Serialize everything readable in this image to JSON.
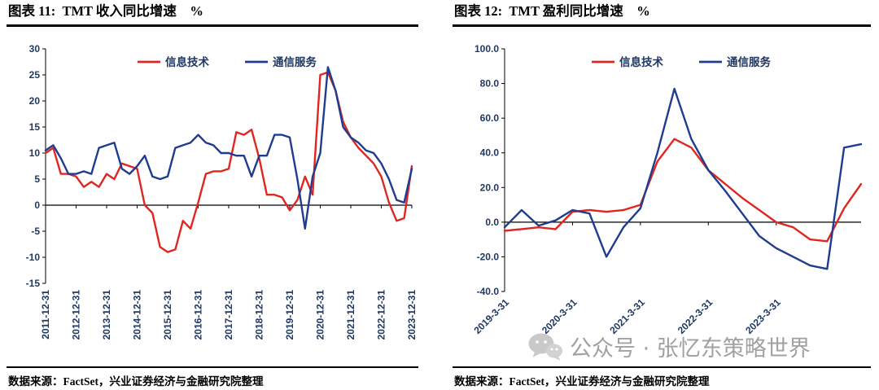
{
  "panels": [
    {
      "title": "图表 11:  TMT 收入同比增速    %",
      "source": "数据来源：FactSet，兴业证券经济与金融研究院整理"
    },
    {
      "title": "图表 12:  TMT 盈利同比增速    %",
      "source": "数据来源：FactSet，兴业证券经济与金融研究院整理"
    }
  ],
  "watermark": {
    "text": "公众号 · 张忆东策略世界",
    "icon": "wechat-icon"
  },
  "colors": {
    "red_series": "#e02620",
    "blue_series": "#1f3c90",
    "axis_text": "#1f3864",
    "axis_line": "#000000"
  },
  "chart_data": [
    {
      "type": "line",
      "title": "图表 11: TMT 收入同比增速 %",
      "unit": "%",
      "legend_position": "top-center",
      "grid": false,
      "axis_label_color": "#1f3864",
      "ylim": [
        -15,
        30
      ],
      "ytick_step": 5,
      "ytick_decimals": 0,
      "x_label_rotation": 90,
      "x_tick_indices": [
        0,
        4,
        8,
        12,
        16,
        20,
        24,
        28,
        32,
        36,
        40,
        44,
        48
      ],
      "x": [
        "2011-12-31",
        "2012-3-31",
        "2012-6-30",
        "2012-9-30",
        "2012-12-31",
        "2013-3-31",
        "2013-6-30",
        "2013-9-30",
        "2013-12-31",
        "2014-3-31",
        "2014-6-30",
        "2014-9-30",
        "2014-12-31",
        "2015-3-31",
        "2015-6-30",
        "2015-9-30",
        "2015-12-31",
        "2016-3-31",
        "2016-6-30",
        "2016-9-30",
        "2016-12-31",
        "2017-3-31",
        "2017-6-30",
        "2017-9-30",
        "2017-12-31",
        "2018-3-31",
        "2018-6-30",
        "2018-9-30",
        "2018-12-31",
        "2019-3-31",
        "2019-6-30",
        "2019-9-30",
        "2019-12-31",
        "2020-3-31",
        "2020-6-30",
        "2020-9-30",
        "2020-12-31",
        "2021-3-31",
        "2021-6-30",
        "2021-9-30",
        "2021-12-31",
        "2022-3-31",
        "2022-6-30",
        "2022-9-30",
        "2022-12-31",
        "2023-3-31",
        "2023-6-30",
        "2023-9-30",
        "2023-12-31"
      ],
      "series": [
        {
          "name": "信息技术",
          "color": "#e02620",
          "values": [
            10,
            11,
            6,
            6,
            5.5,
            3.5,
            4.5,
            3.5,
            6,
            5,
            8,
            7.5,
            7,
            0,
            -1.5,
            -8,
            -9,
            -8.5,
            -3,
            -4.5,
            0.5,
            6,
            6.5,
            6.5,
            7,
            14,
            13.5,
            14.5,
            9,
            2,
            2,
            1.5,
            -1,
            1,
            5.5,
            2,
            25,
            25.5,
            22,
            16,
            13,
            11,
            9.5,
            8,
            5.5,
            0.5,
            -3,
            -2.5,
            7.5
          ]
        },
        {
          "name": "通信服务",
          "color": "#1f3c90",
          "values": [
            10.5,
            11.5,
            9,
            6,
            6,
            6.5,
            6,
            11,
            11.5,
            12,
            7,
            6,
            7.5,
            9.5,
            5.5,
            5,
            5.5,
            11,
            11.5,
            12,
            13.5,
            12,
            11.5,
            10,
            10,
            9.5,
            9.5,
            5.5,
            9.5,
            9.5,
            13.5,
            13.5,
            13,
            5,
            -4.5,
            5.5,
            10,
            26.5,
            22,
            15,
            13,
            12,
            10.5,
            10,
            8,
            5,
            1,
            0.5,
            7
          ]
        }
      ]
    },
    {
      "type": "line",
      "title": "图表 12: TMT 盈利同比增速 %",
      "unit": "%",
      "legend_position": "top-center",
      "grid": false,
      "axis_label_color": "#1f3864",
      "ylim": [
        -40,
        100
      ],
      "ytick_step": 20,
      "ytick_decimals": 1,
      "x_label_rotation": 45,
      "x_tick_indices": [
        0,
        4,
        8,
        12,
        16
      ],
      "x": [
        "2019-3-31",
        "2019-6-30",
        "2019-9-30",
        "2019-12-31",
        "2020-3-31",
        "2020-6-30",
        "2020-9-30",
        "2020-12-31",
        "2021-3-31",
        "2021-6-30",
        "2021-9-30",
        "2021-12-31",
        "2022-3-31",
        "2022-6-30",
        "2022-9-30",
        "2022-12-31",
        "2023-3-31",
        "2023-6-30",
        "2023-9-30",
        "2023-12-31",
        "2024-3-31",
        "2024-6-30"
      ],
      "series": [
        {
          "name": "信息技术",
          "color": "#e02620",
          "values": [
            -5,
            -4,
            -3,
            -4,
            6,
            7,
            6,
            7,
            10,
            35,
            48,
            43,
            30,
            22,
            14,
            7,
            0,
            -3,
            -10,
            -11,
            8,
            22
          ]
        },
        {
          "name": "通信服务",
          "color": "#1f3c90",
          "values": [
            -3,
            7,
            -2,
            1,
            7,
            5,
            -20,
            -3,
            8,
            40,
            77,
            48,
            30,
            18,
            5,
            -8,
            -15,
            -20,
            -25,
            -27,
            43,
            45
          ]
        }
      ]
    }
  ]
}
